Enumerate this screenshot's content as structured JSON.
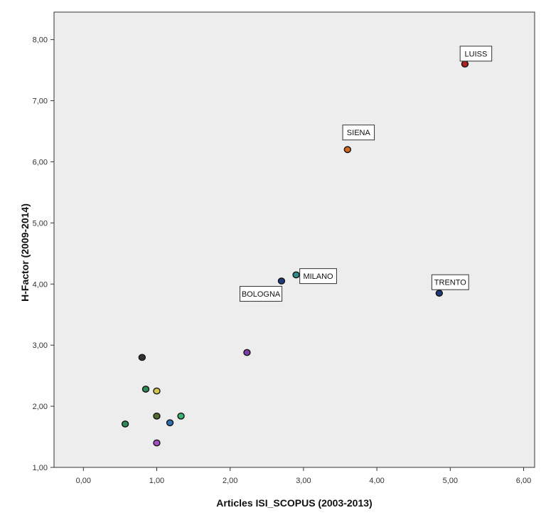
{
  "chart_data": {
    "type": "scatter",
    "title": "",
    "xlabel": "Articles ISI_SCOPUS (2003-2013)",
    "ylabel": "H-Factor (2009-2014)",
    "xlim": [
      -0.4,
      6.15
    ],
    "ylim": [
      1.0,
      8.45
    ],
    "x_ticks": [
      0,
      1,
      2,
      3,
      4,
      5,
      6
    ],
    "x_tick_labels": [
      "0,00",
      "1,00",
      "2,00",
      "3,00",
      "4,00",
      "5,00",
      "6,00"
    ],
    "y_ticks": [
      1,
      2,
      3,
      4,
      5,
      6,
      7,
      8
    ],
    "y_tick_labels": [
      "1,00",
      "2,00",
      "3,00",
      "4,00",
      "5,00",
      "6,00",
      "7,00",
      "8,00"
    ],
    "grid": false,
    "plot_background": "#ededed",
    "points": [
      {
        "x": 5.2,
        "y": 7.6,
        "label": "LUISS",
        "color": "#b22222"
      },
      {
        "x": 3.6,
        "y": 6.2,
        "label": "SIENA",
        "color": "#d2691e"
      },
      {
        "x": 2.9,
        "y": 4.15,
        "label": "MILANO",
        "color": "#2e8b8b"
      },
      {
        "x": 2.7,
        "y": 4.05,
        "label": "BOLOGNA",
        "color": "#1f3a7a"
      },
      {
        "x": 4.85,
        "y": 3.85,
        "label": "TRENTO",
        "color": "#1f3a7a"
      },
      {
        "x": 2.23,
        "y": 2.88,
        "label": "",
        "color": "#7b3fa0"
      },
      {
        "x": 0.8,
        "y": 2.8,
        "label": "",
        "color": "#333333"
      },
      {
        "x": 0.85,
        "y": 2.28,
        "label": "",
        "color": "#2e8b57"
      },
      {
        "x": 1.0,
        "y": 2.25,
        "label": "",
        "color": "#d4c44a"
      },
      {
        "x": 1.0,
        "y": 1.84,
        "label": "",
        "color": "#556b2f"
      },
      {
        "x": 1.33,
        "y": 1.84,
        "label": "",
        "color": "#3cb371"
      },
      {
        "x": 1.18,
        "y": 1.73,
        "label": "",
        "color": "#2f6fb5"
      },
      {
        "x": 0.57,
        "y": 1.71,
        "label": "",
        "color": "#2e8b57"
      },
      {
        "x": 1.0,
        "y": 1.4,
        "label": "",
        "color": "#a050c0"
      }
    ],
    "annotations": [
      {
        "text": "LUISS",
        "x": 5.35,
        "y": 7.77
      },
      {
        "text": "SIENA",
        "x": 3.75,
        "y": 6.48
      },
      {
        "text": "MILANO",
        "x": 3.2,
        "y": 4.13
      },
      {
        "text": "BOLOGNA",
        "x": 2.42,
        "y": 3.84
      },
      {
        "text": "TRENTO",
        "x": 5.0,
        "y": 4.03
      }
    ]
  }
}
